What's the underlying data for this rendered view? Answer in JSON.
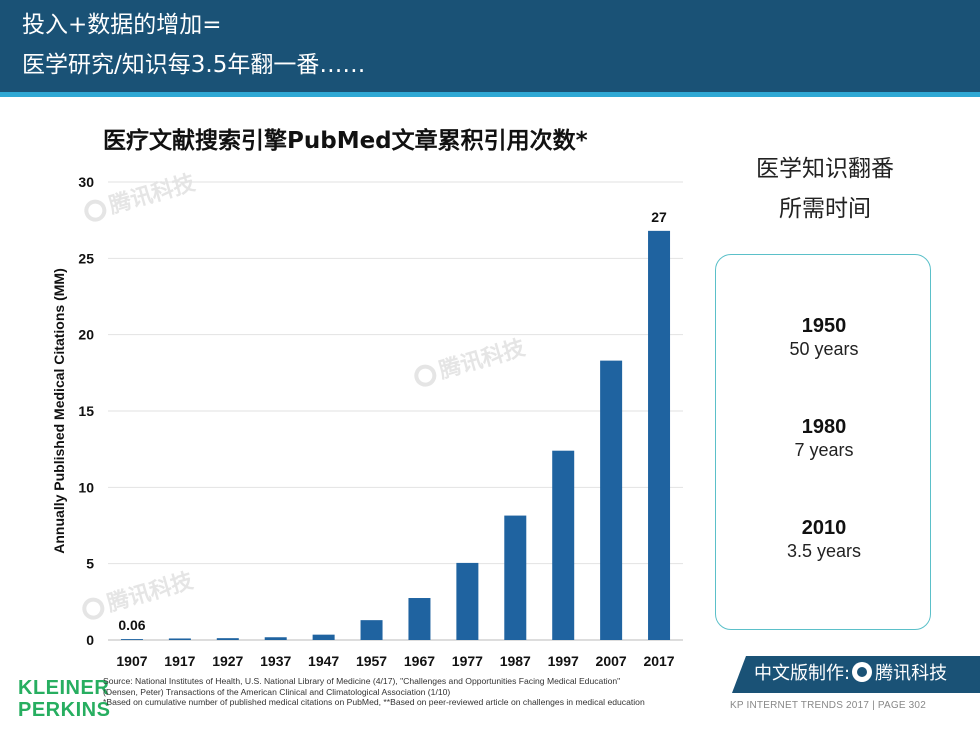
{
  "header": {
    "line1": "投入+数据的增加=",
    "line2": "医学研究/知识每3.5年翻一番……"
  },
  "chart_data": {
    "type": "bar",
    "title": "医疗文献搜索引擎PubMed文章累积引用次数*",
    "ylabel": "Annually Published Medical Citations (MM)",
    "xlabel": "",
    "ylim": [
      0,
      30
    ],
    "yticks": [
      0,
      5,
      10,
      15,
      20,
      25,
      30
    ],
    "grid": true,
    "categories": [
      "1907",
      "1917",
      "1927",
      "1937",
      "1947",
      "1957",
      "1967",
      "1977",
      "1987",
      "1997",
      "2007",
      "2017"
    ],
    "values": [
      0.06,
      0.1,
      0.12,
      0.18,
      0.35,
      1.3,
      2.75,
      5.05,
      8.15,
      12.4,
      18.3,
      26.8
    ],
    "data_labels": [
      {
        "index": 0,
        "text": "0.06"
      },
      {
        "index": 11,
        "text": "27"
      }
    ],
    "bar_color": "#1f63a0"
  },
  "sidebar": {
    "title_line1": "医学知识翻番",
    "title_line2": "所需时间",
    "milestones": [
      {
        "year": "1950",
        "duration": "50 years"
      },
      {
        "year": "1980",
        "duration": "7 years"
      },
      {
        "year": "2010",
        "duration": "3.5 years"
      }
    ]
  },
  "logo": {
    "line1": "KLEINER",
    "line2": "PERKINS"
  },
  "source": {
    "line1": "Source: National Institutes of Health, U.S. National Library of Medicine (4/17), \"Challenges and Opportunities Facing Medical Education\"",
    "line2": "(Densen, Peter) Transactions of the American Clinical and Climatological Association (1/10)",
    "line3": "*Based on cumulative number of published medical citations on PubMed, **Based on peer-reviewed article on challenges in medical education"
  },
  "badge": {
    "prefix": "中文版制作:",
    "brand": "腾讯科技"
  },
  "footer": {
    "text": "KP INTERNET TRENDS 2017  |  PAGE 302"
  },
  "watermark": {
    "text": "腾讯科技"
  },
  "colors": {
    "header_bg": "#1a5276",
    "accent_stripe": "#2fa8d4",
    "bar": "#1f63a0",
    "box_border": "#5bc0c9",
    "logo": "#27ae60"
  }
}
